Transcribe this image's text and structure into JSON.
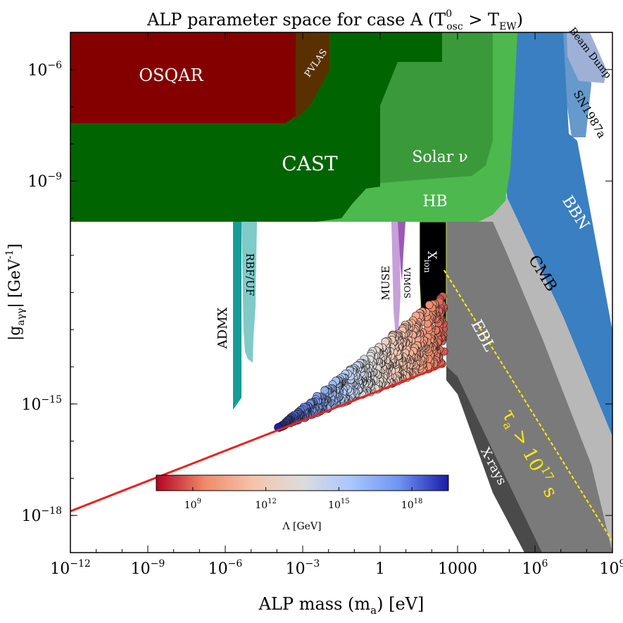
{
  "chart_data": {
    "type": "scatter",
    "title_main": "ALP parameter space for case A (T",
    "title_sup": "0",
    "title_sub": "osc",
    "title_tail": " > T",
    "title_sub2": "EW",
    "title_close": ")",
    "xlabel_main": "ALP mass (m",
    "xlabel_sub": "a",
    "xlabel_tail": ") [eV]",
    "ylabel_main": "|g",
    "ylabel_sub": "aγγ",
    "ylabel_tail": "|  [GeV",
    "ylabel_sup": "-1",
    "ylabel_close": "]",
    "x_scale": "log",
    "y_scale": "log",
    "xlim": [
      1e-12,
      1000000000.0
    ],
    "ylim": [
      1e-19,
      1e-05
    ],
    "x_ticks": [
      {
        "value": 1e-12,
        "base": "10",
        "exp": "−12"
      },
      {
        "value": 1e-09,
        "base": "10",
        "exp": "−9"
      },
      {
        "value": 1e-06,
        "base": "10",
        "exp": "−6"
      },
      {
        "value": 0.001,
        "base": "10",
        "exp": "−3"
      },
      {
        "value": 1,
        "base": "1",
        "exp": ""
      },
      {
        "value": 1000,
        "base": "1000",
        "exp": ""
      },
      {
        "value": 1000000.0,
        "base": "10",
        "exp": "6"
      },
      {
        "value": 1000000000.0,
        "base": "10",
        "exp": "9"
      }
    ],
    "y_ticks": [
      {
        "value": 1e-18,
        "base": "10",
        "exp": "−18"
      },
      {
        "value": 1e-15,
        "base": "10",
        "exp": "−15"
      },
      {
        "value": 1e-09,
        "base": "10",
        "exp": "−9"
      },
      {
        "value": 1e-06,
        "base": "10",
        "exp": "−6"
      }
    ],
    "region_labels": {
      "osqar": "OSQAR",
      "pvlas": "PVLAS",
      "cast": "CAST",
      "solar": "Solar ν",
      "hb": "HB",
      "beam_dump": "Beam Dump",
      "sn1987a": "SN1987a",
      "bbn": "BBN",
      "cmb": "CMB",
      "ebl": "EBL",
      "xrays": "X-rays",
      "xion_main": "X",
      "xion_sub": "ion",
      "admx": "ADMX",
      "rbf": "RBF/UF",
      "muse": "MUSE",
      "vimos": "VIMOS"
    },
    "lifetime_label_main": "τ",
    "lifetime_label_sub": "a",
    "lifetime_label_mid": " > 10",
    "lifetime_label_sup": "17",
    "lifetime_label_unit": " s",
    "colorbar": {
      "label": "Λ [GeV]",
      "range_log10": [
        7.5,
        19.5
      ],
      "ticks": [
        {
          "value": 9,
          "text": "10",
          "exp": "9"
        },
        {
          "value": 12,
          "text": "10",
          "exp": "12"
        },
        {
          "value": 15,
          "text": "10",
          "exp": "15"
        },
        {
          "value": 18,
          "text": "10",
          "exp": "18"
        }
      ],
      "colormap": [
        "#b40426",
        "#f08a6a",
        "#f5c4ad",
        "#dddcdc",
        "#a9c6fd",
        "#6f92f3",
        "#1a1aa8"
      ]
    },
    "red_line": {
      "x": [
        1e-12,
        300
      ],
      "y": [
        1.3e-18,
        1.1e-14
      ],
      "color": "#e8231f"
    },
    "yellow_line": {
      "x": [
        300,
        1000000000.0
      ],
      "y": [
        4e-12,
        2e-19
      ],
      "color": "#ffee00"
    },
    "scatter_extent": {
      "x_min": 0.0001,
      "x_max": 300,
      "coupling_ratio_max": 80
    },
    "colors": {
      "osqar": "#840000",
      "pvlas": "#5a3000",
      "cast": "#006400",
      "solar": "#3a9a3a",
      "hb": "#4db84d",
      "admx": "#1a9a96",
      "rbf": "#7ecbc8",
      "muse": "#c6a0d8",
      "vimos": "#9b59b6",
      "xion": "#000000",
      "ebl": "#7a7a7a",
      "xrays": "#4a4a4a",
      "cmb": "#b8b8b8",
      "bbn": "#3a7fc1",
      "sn1987a": "#6699cc",
      "beam_dump": "#9fb0d6"
    }
  }
}
